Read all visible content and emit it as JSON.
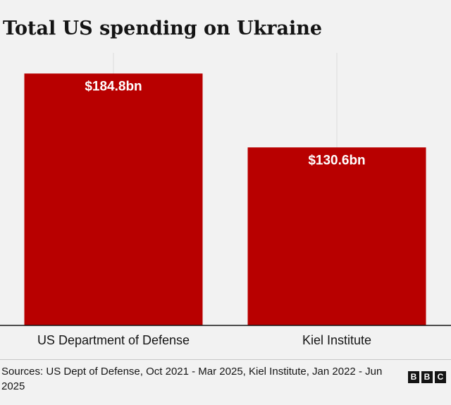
{
  "chart_data": {
    "type": "bar",
    "title": "Total US spending on Ukraine",
    "categories": [
      "US Department of Defense",
      "Kiel Institute"
    ],
    "values": [
      184.8,
      130.6
    ],
    "value_labels": [
      "$184.8bn",
      "$130.6bn"
    ],
    "xlabel": "",
    "ylabel": "",
    "ylim": [
      0,
      185
    ],
    "unit": "bn USD",
    "grid": true,
    "bar_color": "#b80000"
  },
  "footer": {
    "source": "Sources: US Dept of Defense, Oct 2021 - Mar 2025, Kiel Institute, Jan 2022 - Jun 2025",
    "logo_letters": [
      "B",
      "B",
      "C"
    ]
  }
}
